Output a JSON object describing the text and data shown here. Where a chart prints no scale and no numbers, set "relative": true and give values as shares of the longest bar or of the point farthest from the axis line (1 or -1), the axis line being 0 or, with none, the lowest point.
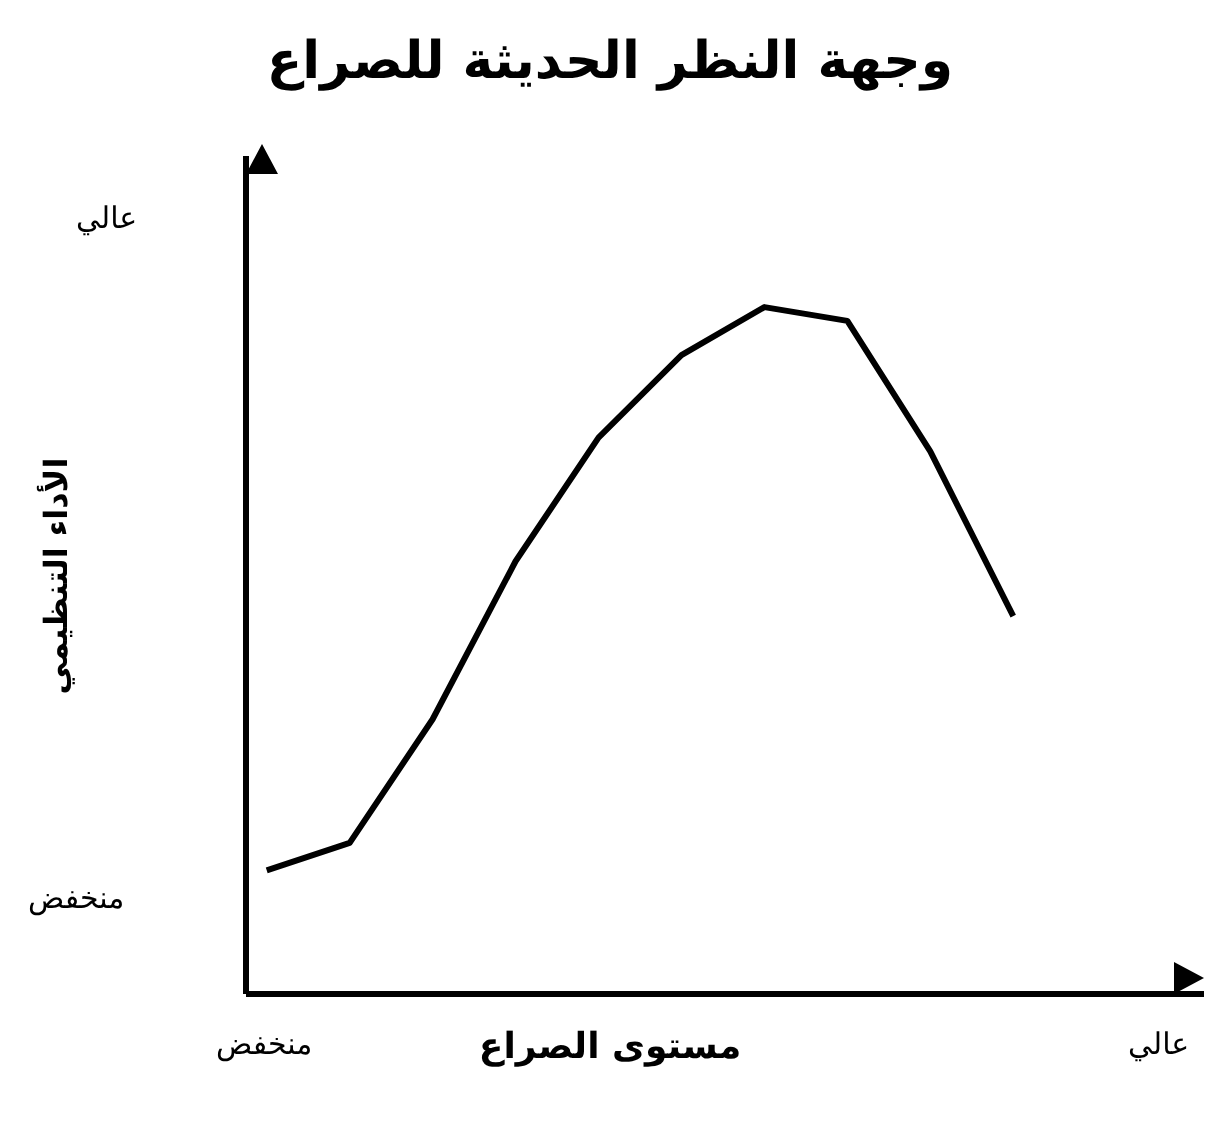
{
  "chart_data": {
    "type": "line",
    "title": "وجهة النظر الحديثة للصراع",
    "xlabel": "مستوى الصراع",
    "ylabel": "الأداء التنظيمي",
    "relative": true,
    "color": "#000000",
    "marker": "none",
    "grid": false,
    "legend": false,
    "categories": [
      null,
      null,
      null,
      null,
      null,
      null,
      null,
      null,
      null,
      null
    ],
    "values": [
      0.18,
      0.22,
      0.4,
      0.63,
      0.81,
      0.93,
      1,
      0.98,
      0.79,
      0.55
    ],
    "annotations": [
      "عالي",
      "منخفض",
      "منخفض",
      "عالي"
    ]
  }
}
